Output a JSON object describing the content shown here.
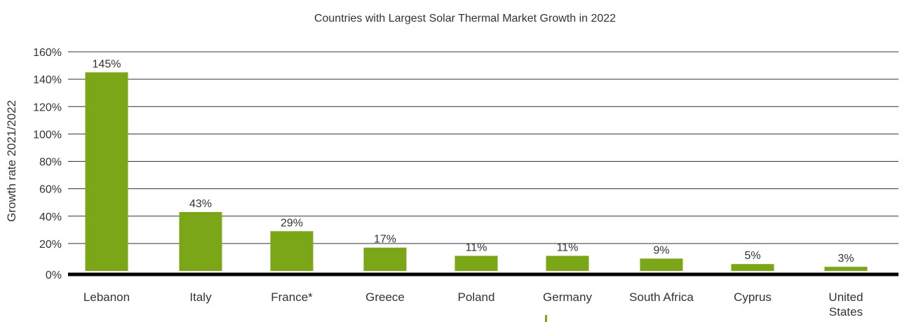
{
  "chart_data": {
    "type": "bar",
    "title": "Countries with Largest Solar Thermal Market Growth in 2022",
    "ylabel": "Growth rate 2021/2022",
    "xlabel": "",
    "categories": [
      [
        "Lebanon"
      ],
      [
        "Italy"
      ],
      [
        "France*"
      ],
      [
        "Greece"
      ],
      [
        "Poland"
      ],
      [
        "Germany"
      ],
      [
        "South Africa"
      ],
      [
        "Cyprus"
      ],
      [
        "United",
        "States"
      ]
    ],
    "values": [
      145,
      43,
      29,
      17,
      11,
      11,
      9,
      5,
      3
    ],
    "data_labels": [
      "145%",
      "43%",
      "29%",
      "17%",
      "11%",
      "11%",
      "9%",
      "5%",
      "3%"
    ],
    "unit": "%",
    "ylim": [
      0,
      160
    ],
    "yticks": [
      0,
      20,
      40,
      60,
      80,
      100,
      120,
      140,
      160
    ],
    "ytick_labels": [
      "0%",
      "20%",
      "40%",
      "60%",
      "80%",
      "100%",
      "120%",
      "140%",
      "160%"
    ],
    "grid": true,
    "bar_color": "#7aa617"
  }
}
